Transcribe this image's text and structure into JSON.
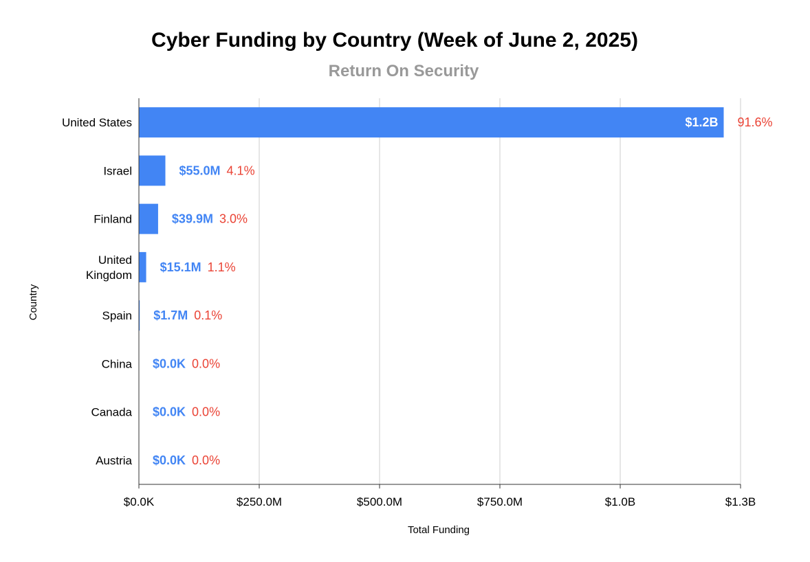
{
  "chart_data": {
    "type": "bar",
    "orientation": "horizontal",
    "title": "Cyber Funding by Country (Week of June 2, 2025)",
    "subtitle": "Return On Security",
    "xlabel": "Total Funding",
    "ylabel": "Country",
    "xlim": [
      0,
      1250000000
    ],
    "x_ticks": [
      0,
      250000000,
      500000000,
      750000000,
      1000000000,
      1250000000
    ],
    "x_tick_labels": [
      "$0.0K",
      "$250.0M",
      "$500.0M",
      "$750.0M",
      "$1.0B",
      "$1.3B"
    ],
    "grid": true,
    "categories": [
      "United States",
      "Israel",
      "Finland",
      "United Kingdom",
      "Spain",
      "China",
      "Canada",
      "Austria"
    ],
    "category_labels": [
      [
        "United States"
      ],
      [
        "Israel"
      ],
      [
        "Finland"
      ],
      [
        "United",
        "Kingdom"
      ],
      [
        "Spain"
      ],
      [
        "China"
      ],
      [
        "Canada"
      ],
      [
        "Austria"
      ]
    ],
    "values": [
      1215000000,
      55000000,
      39900000,
      15100000,
      1700000,
      0,
      0,
      0
    ],
    "value_labels": [
      "$1.2B",
      "$55.0M",
      "$39.9M",
      "$15.1M",
      "$1.7M",
      "$0.0K",
      "$0.0K",
      "$0.0K"
    ],
    "percent_labels": [
      "91.6%",
      "4.1%",
      "3.0%",
      "1.1%",
      "0.1%",
      "0.0%",
      "0.0%",
      "0.0%"
    ],
    "colors": {
      "bar": "#4285f4",
      "value_text": "#4285f4",
      "percent_text": "#ea4335",
      "grid": "#cccccc",
      "axis": "#333333"
    }
  }
}
